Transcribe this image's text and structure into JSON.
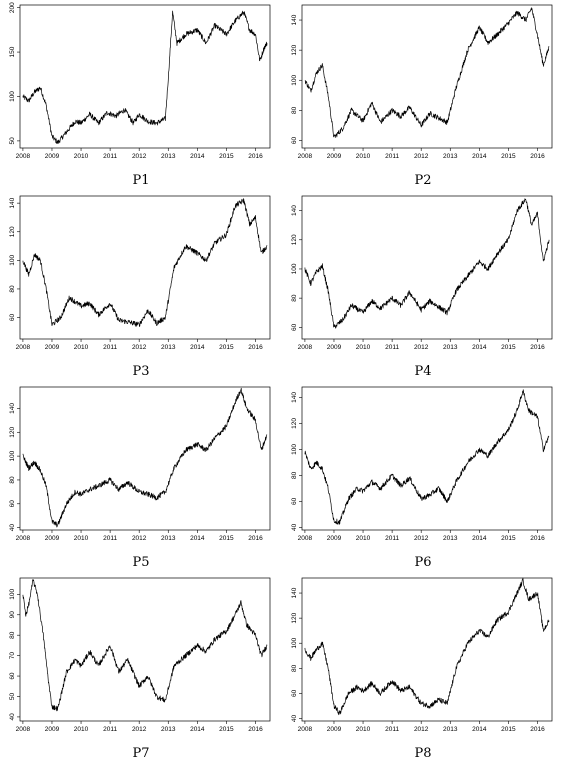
{
  "chart_data": [
    {
      "type": "line",
      "title": "P1",
      "x_ticks": [
        "2008",
        "2009",
        "2010",
        "2011",
        "2012",
        "2013",
        "2014",
        "2015",
        "2016"
      ],
      "x_range": [
        2007.9,
        2016.5
      ],
      "y_ticks": [
        50,
        100,
        150,
        200
      ],
      "ylim": [
        42,
        203
      ],
      "series": [
        {
          "x": [
            2008.0,
            2008.2,
            2008.4,
            2008.6,
            2008.8,
            2009.0,
            2009.2,
            2009.5,
            2009.8,
            2010.0,
            2010.3,
            2010.6,
            2010.9,
            2011.2,
            2011.5,
            2011.8,
            2012.0,
            2012.3,
            2012.6,
            2012.9,
            2013.0,
            2013.15,
            2013.3,
            2013.6,
            2014.0,
            2014.3,
            2014.6,
            2015.0,
            2015.3,
            2015.6,
            2015.8,
            2016.0,
            2016.15,
            2016.3,
            2016.4
          ],
          "y": [
            100,
            95,
            105,
            110,
            90,
            55,
            48,
            60,
            72,
            70,
            80,
            70,
            82,
            78,
            85,
            70,
            80,
            72,
            70,
            75,
            120,
            195,
            160,
            170,
            175,
            160,
            180,
            170,
            185,
            195,
            175,
            170,
            140,
            155,
            160
          ]
        }
      ]
    },
    {
      "type": "line",
      "title": "P2",
      "x_ticks": [
        "2008",
        "2009",
        "2010",
        "2011",
        "2012",
        "2013",
        "2014",
        "2015",
        "2016"
      ],
      "x_range": [
        2007.9,
        2016.5
      ],
      "y_ticks": [
        60,
        80,
        100,
        120,
        140
      ],
      "ylim": [
        55,
        150
      ],
      "series": [
        {
          "x": [
            2008.0,
            2008.2,
            2008.4,
            2008.6,
            2008.8,
            2009.0,
            2009.3,
            2009.6,
            2010.0,
            2010.3,
            2010.6,
            2011.0,
            2011.3,
            2011.6,
            2012.0,
            2012.3,
            2012.6,
            2012.9,
            2013.2,
            2013.6,
            2014.0,
            2014.3,
            2014.6,
            2015.0,
            2015.3,
            2015.6,
            2015.8,
            2016.0,
            2016.2,
            2016.4
          ],
          "y": [
            100,
            93,
            105,
            110,
            90,
            62,
            68,
            80,
            73,
            85,
            72,
            80,
            76,
            82,
            70,
            78,
            75,
            72,
            95,
            120,
            135,
            125,
            130,
            138,
            145,
            140,
            148,
            130,
            110,
            122
          ]
        }
      ]
    },
    {
      "type": "line",
      "title": "P3",
      "x_ticks": [
        "2008",
        "2009",
        "2010",
        "2011",
        "2012",
        "2013",
        "2014",
        "2015",
        "2016"
      ],
      "x_range": [
        2007.9,
        2016.5
      ],
      "y_ticks": [
        60,
        80,
        100,
        120,
        140
      ],
      "ylim": [
        45,
        145
      ],
      "series": [
        {
          "x": [
            2008.0,
            2008.2,
            2008.4,
            2008.6,
            2008.8,
            2009.0,
            2009.3,
            2009.6,
            2010.0,
            2010.3,
            2010.6,
            2011.0,
            2011.3,
            2011.6,
            2012.0,
            2012.3,
            2012.6,
            2012.9,
            2013.2,
            2013.6,
            2014.0,
            2014.3,
            2014.6,
            2015.0,
            2015.3,
            2015.6,
            2015.8,
            2016.0,
            2016.2,
            2016.4
          ],
          "y": [
            100,
            90,
            104,
            100,
            80,
            55,
            60,
            74,
            68,
            70,
            62,
            70,
            58,
            57,
            55,
            65,
            56,
            60,
            95,
            110,
            105,
            100,
            112,
            118,
            138,
            142,
            125,
            130,
            105,
            110
          ]
        }
      ]
    },
    {
      "type": "line",
      "title": "P4",
      "x_ticks": [
        "2008",
        "2009",
        "2010",
        "2011",
        "2012",
        "2013",
        "2014",
        "2015",
        "2016"
      ],
      "x_range": [
        2007.9,
        2016.5
      ],
      "y_ticks": [
        60,
        80,
        100,
        120,
        140
      ],
      "ylim": [
        52,
        150
      ],
      "series": [
        {
          "x": [
            2008.0,
            2008.2,
            2008.4,
            2008.6,
            2008.8,
            2009.0,
            2009.3,
            2009.6,
            2010.0,
            2010.3,
            2010.6,
            2011.0,
            2011.3,
            2011.6,
            2012.0,
            2012.3,
            2012.6,
            2012.9,
            2013.2,
            2013.6,
            2014.0,
            2014.3,
            2014.6,
            2015.0,
            2015.3,
            2015.6,
            2015.8,
            2016.0,
            2016.2,
            2016.4
          ],
          "y": [
            100,
            90,
            98,
            102,
            85,
            60,
            65,
            75,
            70,
            78,
            73,
            80,
            75,
            84,
            72,
            78,
            74,
            70,
            85,
            95,
            105,
            100,
            110,
            120,
            140,
            148,
            130,
            138,
            105,
            120
          ]
        }
      ]
    },
    {
      "type": "line",
      "title": "P5",
      "x_ticks": [
        "2008",
        "2009",
        "2010",
        "2011",
        "2012",
        "2013",
        "2014",
        "2015",
        "2016"
      ],
      "x_range": [
        2007.9,
        2016.5
      ],
      "y_ticks": [
        40,
        60,
        80,
        100,
        120,
        140,
        160
      ],
      "ylim": [
        38,
        158
      ],
      "series": [
        {
          "x": [
            2008.0,
            2008.2,
            2008.4,
            2008.6,
            2008.8,
            2009.0,
            2009.2,
            2009.5,
            2009.8,
            2010.0,
            2010.3,
            2010.6,
            2011.0,
            2011.3,
            2011.6,
            2012.0,
            2012.3,
            2012.6,
            2012.9,
            2013.2,
            2013.6,
            2014.0,
            2014.3,
            2014.6,
            2015.0,
            2015.3,
            2015.5,
            2015.7,
            2016.0,
            2016.2,
            2016.4
          ],
          "y": [
            100,
            90,
            95,
            88,
            75,
            45,
            42,
            60,
            70,
            68,
            72,
            75,
            80,
            72,
            78,
            70,
            68,
            65,
            70,
            90,
            105,
            110,
            105,
            115,
            125,
            145,
            156,
            140,
            130,
            105,
            118
          ]
        }
      ]
    },
    {
      "type": "line",
      "title": "P6",
      "x_ticks": [
        "2008",
        "2009",
        "2010",
        "2011",
        "2012",
        "2013",
        "2014",
        "2015",
        "2016"
      ],
      "x_range": [
        2007.9,
        2016.5
      ],
      "y_ticks": [
        40,
        60,
        80,
        100,
        120,
        140
      ],
      "ylim": [
        38,
        148
      ],
      "series": [
        {
          "x": [
            2008.0,
            2008.2,
            2008.4,
            2008.6,
            2008.8,
            2009.0,
            2009.2,
            2009.5,
            2009.8,
            2010.0,
            2010.3,
            2010.6,
            2011.0,
            2011.3,
            2011.6,
            2012.0,
            2012.3,
            2012.6,
            2012.9,
            2013.2,
            2013.6,
            2014.0,
            2014.3,
            2014.6,
            2015.0,
            2015.3,
            2015.5,
            2015.7,
            2016.0,
            2016.2,
            2016.4
          ],
          "y": [
            98,
            85,
            90,
            85,
            70,
            45,
            44,
            62,
            70,
            68,
            75,
            70,
            80,
            72,
            78,
            62,
            65,
            70,
            60,
            75,
            90,
            100,
            95,
            105,
            115,
            130,
            145,
            130,
            125,
            100,
            110
          ]
        }
      ]
    },
    {
      "type": "line",
      "title": "P7",
      "x_ticks": [
        "2008",
        "2009",
        "2010",
        "2011",
        "2012",
        "2013",
        "2014",
        "2015",
        "2016"
      ],
      "x_range": [
        2007.9,
        2016.5
      ],
      "y_ticks": [
        40,
        50,
        60,
        70,
        80,
        90,
        100
      ],
      "ylim": [
        38,
        108
      ],
      "series": [
        {
          "x": [
            2008.0,
            2008.1,
            2008.2,
            2008.35,
            2008.5,
            2008.7,
            2008.9,
            2009.0,
            2009.2,
            2009.5,
            2009.8,
            2010.0,
            2010.3,
            2010.6,
            2011.0,
            2011.3,
            2011.6,
            2012.0,
            2012.3,
            2012.6,
            2012.9,
            2013.2,
            2013.6,
            2014.0,
            2014.3,
            2014.6,
            2015.0,
            2015.3,
            2015.5,
            2015.7,
            2016.0,
            2016.2,
            2016.4
          ],
          "y": [
            100,
            90,
            95,
            107,
            100,
            80,
            55,
            45,
            44,
            62,
            68,
            65,
            72,
            65,
            75,
            62,
            68,
            55,
            60,
            50,
            48,
            65,
            70,
            75,
            72,
            78,
            82,
            90,
            96,
            85,
            80,
            70,
            75
          ]
        }
      ]
    },
    {
      "type": "line",
      "title": "P8",
      "x_ticks": [
        "2008",
        "2009",
        "2010",
        "2011",
        "2012",
        "2013",
        "2014",
        "2015",
        "2016"
      ],
      "x_range": [
        2007.9,
        2016.5
      ],
      "y_ticks": [
        40,
        60,
        80,
        100,
        120,
        140
      ],
      "ylim": [
        38,
        152
      ],
      "series": [
        {
          "x": [
            2008.0,
            2008.2,
            2008.4,
            2008.6,
            2008.8,
            2009.0,
            2009.2,
            2009.5,
            2009.8,
            2010.0,
            2010.3,
            2010.6,
            2011.0,
            2011.3,
            2011.6,
            2012.0,
            2012.3,
            2012.6,
            2012.9,
            2013.2,
            2013.6,
            2014.0,
            2014.3,
            2014.6,
            2015.0,
            2015.3,
            2015.5,
            2015.7,
            2016.0,
            2016.2,
            2016.4
          ],
          "y": [
            95,
            88,
            95,
            100,
            80,
            50,
            44,
            60,
            65,
            62,
            68,
            60,
            70,
            62,
            65,
            52,
            50,
            55,
            52,
            80,
            100,
            110,
            105,
            118,
            125,
            140,
            150,
            135,
            140,
            110,
            118
          ]
        }
      ]
    }
  ]
}
